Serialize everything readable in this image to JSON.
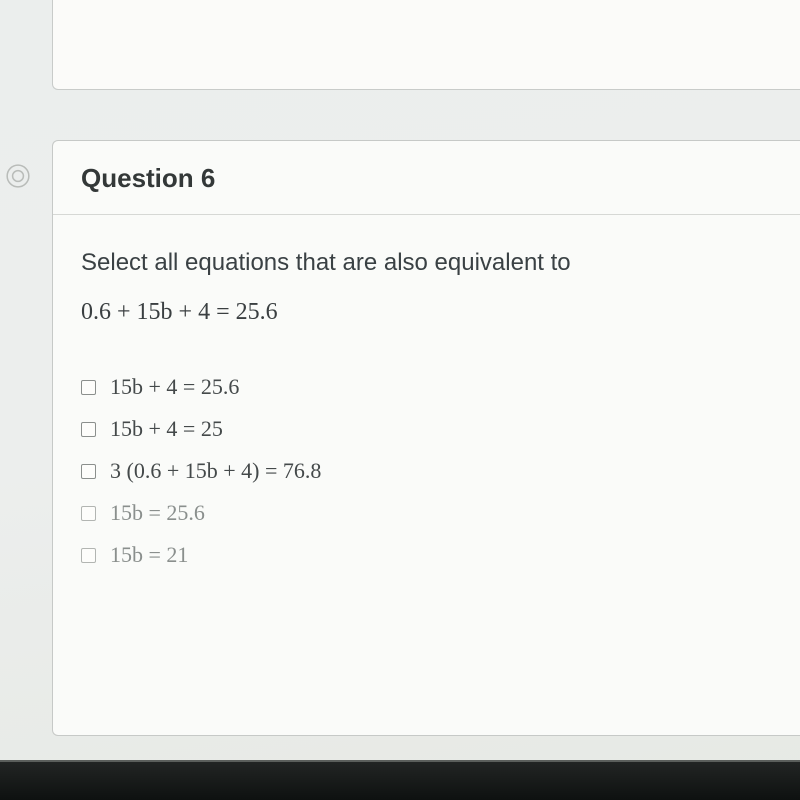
{
  "question": {
    "title": "Question 6",
    "prompt": "Select all equations that are also equivalent to",
    "main_equation": "0.6 + 15b + 4 = 25.6",
    "choices": [
      {
        "text": "15b + 4 = 25.6",
        "faded": false
      },
      {
        "text": "15b + 4 = 25",
        "faded": false
      },
      {
        "text": "3 (0.6 + 15b + 4) = 76.8",
        "faded": false
      },
      {
        "text": "15b = 25.6",
        "faded": true
      },
      {
        "text": "15b = 21",
        "faded": true
      }
    ]
  },
  "style": {
    "card_bg": "#fafbf9",
    "border": "#c6c9c7",
    "header_fontsize": 26,
    "prompt_fontsize": 24,
    "equation_fontsize": 24,
    "choice_fontsize": 22,
    "checkbox_size": 15,
    "checkbox_border": "#8b8f8d",
    "text_color": "#3a4144",
    "faded_color": "#8a8f8d",
    "page_bg": "#eceeed"
  }
}
